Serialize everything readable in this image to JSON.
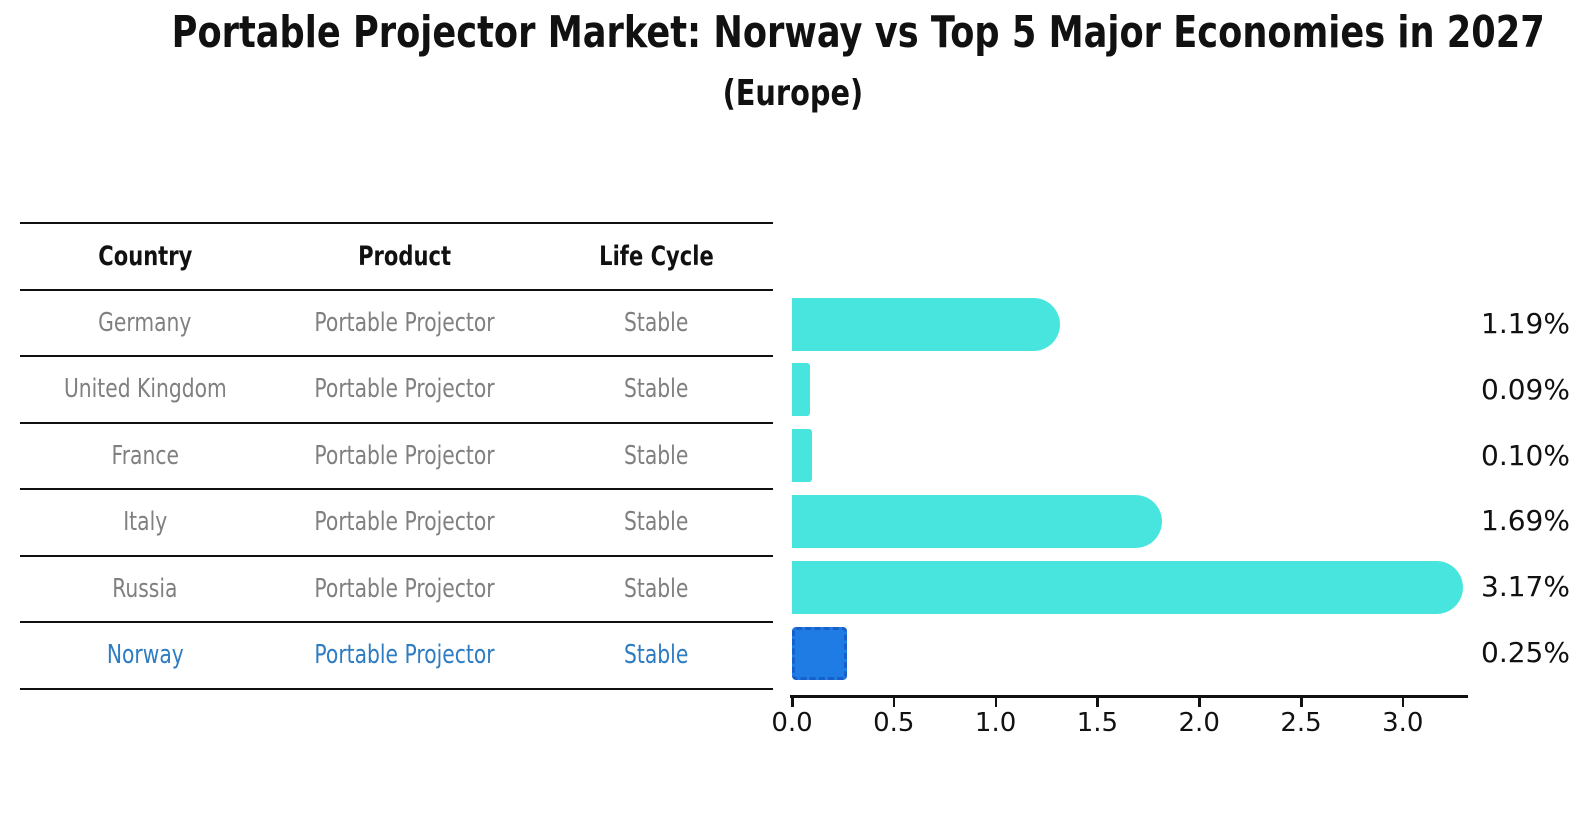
{
  "title": "Portable Projector Market: Norway vs Top 5 Major Economies in 2027",
  "subtitle": "(Europe)",
  "table": {
    "headers": [
      "Country",
      "Product",
      "Life Cycle"
    ],
    "rows": [
      {
        "country": "Germany",
        "product": "Portable Projector",
        "life_cycle": "Stable",
        "highlight": false
      },
      {
        "country": "United Kingdom",
        "product": "Portable Projector",
        "life_cycle": "Stable",
        "highlight": false
      },
      {
        "country": "France",
        "product": "Portable Projector",
        "life_cycle": "Stable",
        "highlight": false
      },
      {
        "country": "Italy",
        "product": "Portable Projector",
        "life_cycle": "Stable",
        "highlight": false
      },
      {
        "country": "Russia",
        "product": "Portable Projector",
        "life_cycle": "Stable",
        "highlight": true
      }
    ],
    "highlight_row": {
      "country": "Norway",
      "product": "Portable Projector",
      "life_cycle": "Stable"
    }
  },
  "chart_data": {
    "type": "bar",
    "orientation": "horizontal",
    "title": "Portable Projector Market: Norway vs Top 5 Major Economies in 2027",
    "subtitle": "(Europe)",
    "categories": [
      "Germany",
      "United Kingdom",
      "France",
      "Italy",
      "Russia",
      "Norway"
    ],
    "values": [
      1.19,
      0.09,
      0.1,
      1.69,
      3.17,
      0.25
    ],
    "value_labels": [
      "1.19%",
      "0.09%",
      "0.10%",
      "1.69%",
      "3.17%",
      "0.25%"
    ],
    "highlight_category": "Norway",
    "x_ticks": [
      0.0,
      0.5,
      1.0,
      1.5,
      2.0,
      2.5,
      3.0
    ],
    "x_tick_labels": [
      "0.0",
      "0.5",
      "1.0",
      "1.5",
      "2.0",
      "2.5",
      "3.0"
    ],
    "xlim": [
      0,
      3.3
    ],
    "grid": false,
    "legend": false,
    "colors": {
      "bar": "#48e5df",
      "highlight_bar": "#1f7ce4",
      "highlight_bar_border": "#175fc9",
      "highlight_text": "#2e7cc1",
      "table_text": "#808080",
      "axis_text": "#111111"
    }
  }
}
